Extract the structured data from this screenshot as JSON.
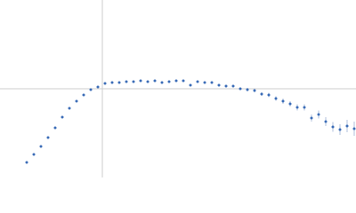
{
  "chart_data": {
    "type": "scatter",
    "color": "#3b6cb7",
    "error_color": "#9fb3d6",
    "ref_color": "#cccccc",
    "xlim": [
      0,
      400
    ],
    "ylim": [
      0,
      200
    ],
    "vline": 115,
    "hline": 100,
    "x": [
      30,
      38,
      46,
      54,
      62,
      70,
      78,
      86,
      94,
      102,
      110,
      118,
      126,
      134,
      142,
      150,
      158,
      166,
      174,
      182,
      190,
      198,
      206,
      214,
      222,
      230,
      238,
      246,
      254,
      262,
      270,
      278,
      286,
      294,
      302,
      310,
      318,
      326,
      334,
      342,
      350,
      358,
      366,
      374,
      382,
      390,
      398
    ],
    "values": [
      17,
      26,
      35,
      45,
      56,
      68,
      78,
      86,
      93,
      99,
      102,
      106,
      107,
      107,
      108,
      108,
      109,
      108,
      109,
      107,
      108,
      109,
      109,
      104,
      108,
      107,
      107,
      104,
      103,
      103,
      100,
      99,
      98,
      94,
      93,
      89,
      86,
      83,
      79,
      79,
      67,
      71,
      63,
      57,
      54,
      58,
      55
    ],
    "errors": [
      0.5,
      0.5,
      0.5,
      0.5,
      0.5,
      0.5,
      0.5,
      0.5,
      0.5,
      0.5,
      0.5,
      0.5,
      0.5,
      0.5,
      0.5,
      0.5,
      0.5,
      0.5,
      0.5,
      0.5,
      1,
      1,
      1,
      1,
      1,
      1,
      1,
      1.5,
      1.5,
      1.5,
      1.5,
      2,
      2,
      2,
      2.5,
      2.5,
      3,
      3,
      3.5,
      3.5,
      4,
      4.5,
      5,
      5.5,
      6,
      7,
      8
    ]
  }
}
